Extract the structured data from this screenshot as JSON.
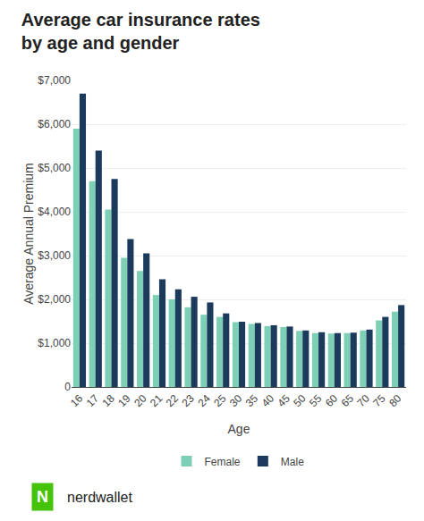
{
  "chart_data": {
    "type": "bar",
    "title": "Average car insurance rates",
    "subtitle": "by age and gender",
    "x_label": "Age",
    "y_label": "Average Annual Premium",
    "categories": [
      "16",
      "17",
      "18",
      "19",
      "20",
      "21",
      "22",
      "23",
      "24",
      "25",
      "30",
      "35",
      "40",
      "45",
      "50",
      "55",
      "60",
      "65",
      "70",
      "75",
      "80"
    ],
    "series": [
      {
        "name": "Female",
        "color": "#7DCFB6",
        "values": [
          5900,
          4700,
          4050,
          2950,
          2650,
          2100,
          2000,
          1820,
          1650,
          1600,
          1480,
          1440,
          1390,
          1370,
          1280,
          1230,
          1220,
          1230,
          1290,
          1520,
          1720
        ]
      },
      {
        "name": "Male",
        "color": "#1B3A5C",
        "values": [
          6700,
          5400,
          4750,
          3380,
          3050,
          2460,
          2230,
          2060,
          1930,
          1680,
          1490,
          1460,
          1410,
          1380,
          1290,
          1250,
          1230,
          1240,
          1310,
          1600,
          1870
        ]
      }
    ],
    "ylim": [
      0,
      7000
    ],
    "yticks": [
      0,
      {
        "value": 1000,
        "label": "$1,000"
      },
      {
        "value": 2000,
        "label": "$2,000"
      },
      {
        "value": 3000,
        "label": "$3,000"
      },
      {
        "value": 4000,
        "label": "$4,000"
      },
      {
        "value": 5000,
        "label": "$5,000"
      },
      {
        "value": 6000,
        "label": "$6,000"
      },
      {
        "value": 7000,
        "label": "$7,000"
      }
    ],
    "grid": true,
    "legend": "bottom",
    "annotations": [
      "N",
      "nerdwallet"
    ]
  }
}
